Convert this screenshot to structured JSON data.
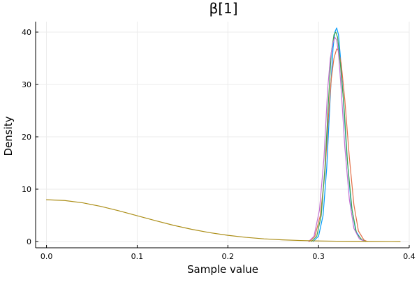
{
  "chart_data": {
    "type": "line",
    "title": "β[1]",
    "xlabel": "Sample value",
    "ylabel": "Density",
    "xlim": [
      -0.012,
      0.4
    ],
    "ylim": [
      -1.2,
      42.0
    ],
    "xticks": [
      0.0,
      0.1,
      0.2,
      0.3,
      0.4
    ],
    "xtick_labels": [
      "0.0",
      "0.1",
      "0.2",
      "0.3",
      "0.4"
    ],
    "yticks": [
      0,
      10,
      20,
      30,
      40
    ],
    "ytick_labels": [
      "0",
      "10",
      "20",
      "30",
      "40"
    ],
    "grid": true,
    "legend": "none",
    "colors": {
      "grid": "#ebebeb",
      "axis": "#000000",
      "background": "#ffffff"
    },
    "series": [
      {
        "color": "#009AFA",
        "x": [
          0.294,
          0.3,
          0.305,
          0.309,
          0.313,
          0.316,
          0.318,
          0.32,
          0.322,
          0.324,
          0.327,
          0.331,
          0.336,
          0.341,
          0.347,
          0.352
        ],
        "y": [
          0.0,
          1.0,
          5.0,
          14.0,
          28.0,
          37.0,
          40.0,
          40.8,
          39.5,
          35.5,
          28.0,
          17.0,
          7.0,
          2.0,
          0.4,
          0.0
        ]
      },
      {
        "color": "#E36F47",
        "x": [
          0.29,
          0.296,
          0.302,
          0.307,
          0.311,
          0.314,
          0.317,
          0.32,
          0.322,
          0.325,
          0.329,
          0.334,
          0.339,
          0.344,
          0.35,
          0.354
        ],
        "y": [
          0.0,
          1.0,
          5.0,
          13.0,
          24.0,
          31.0,
          35.0,
          36.8,
          36.5,
          34.0,
          27.0,
          16.0,
          7.0,
          2.0,
          0.3,
          0.0
        ]
      },
      {
        "color": "#3EA44E",
        "x": [
          0.292,
          0.298,
          0.303,
          0.307,
          0.311,
          0.314,
          0.317,
          0.319,
          0.321,
          0.324,
          0.328,
          0.332,
          0.337,
          0.342,
          0.348,
          0.352
        ],
        "y": [
          0.0,
          1.0,
          5.0,
          14.0,
          27.0,
          36.0,
          39.5,
          40.0,
          39.0,
          34.0,
          26.0,
          15.0,
          6.0,
          1.5,
          0.3,
          0.0
        ]
      },
      {
        "color": "#C371D2",
        "x": [
          0.289,
          0.295,
          0.301,
          0.306,
          0.31,
          0.313,
          0.316,
          0.318,
          0.32,
          0.322,
          0.325,
          0.329,
          0.334,
          0.339,
          0.345,
          0.351
        ],
        "y": [
          0.0,
          1.0,
          6.0,
          16.0,
          29.0,
          35.0,
          38.0,
          39.0,
          38.5,
          36.0,
          29.0,
          18.0,
          8.0,
          2.5,
          0.5,
          0.0
        ]
      },
      {
        "color": "#AC8E18",
        "x": [
          0.0,
          0.02,
          0.04,
          0.06,
          0.08,
          0.1,
          0.12,
          0.14,
          0.16,
          0.18,
          0.2,
          0.22,
          0.24,
          0.26,
          0.28,
          0.3,
          0.32,
          0.34,
          0.36,
          0.38,
          0.39
        ],
        "y": [
          7.98,
          7.83,
          7.39,
          6.71,
          5.86,
          4.93,
          3.99,
          3.1,
          2.33,
          1.69,
          1.18,
          0.79,
          0.51,
          0.32,
          0.19,
          0.11,
          0.06,
          0.03,
          0.02,
          0.01,
          0.0
        ]
      }
    ]
  }
}
